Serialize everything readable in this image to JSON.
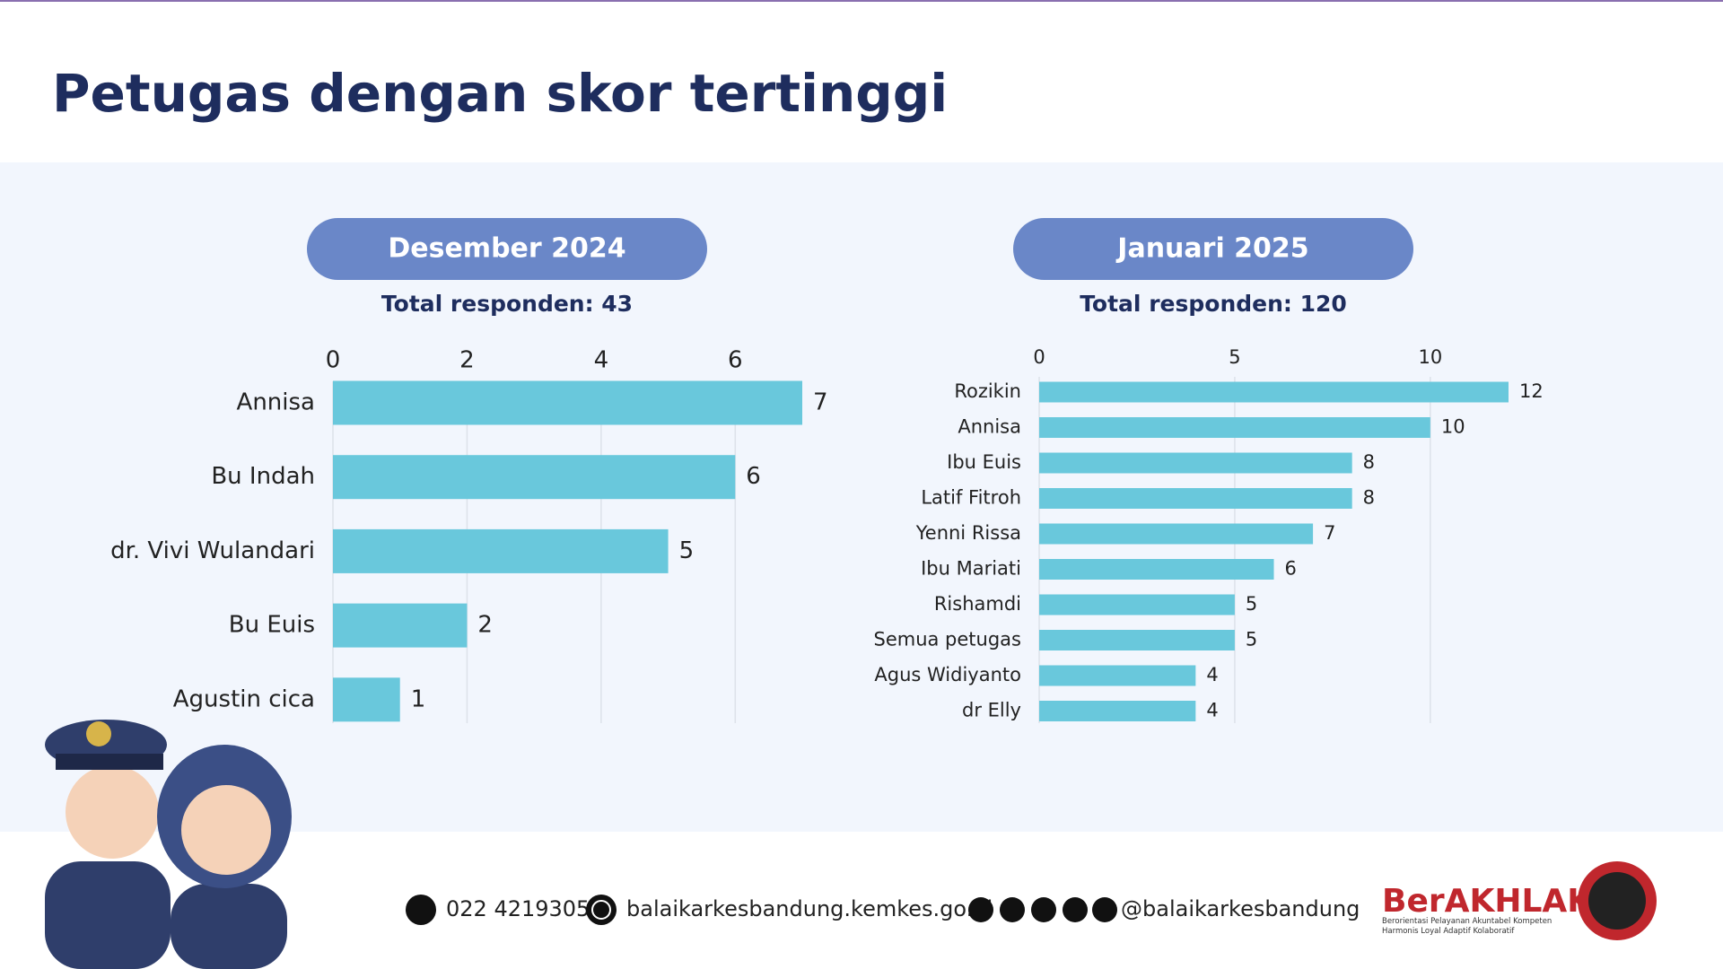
{
  "title": "Petugas dengan skor tertinggi",
  "footer": {
    "phone": "022 4219305",
    "website": "balaikarkesbandung.kemkes.go.id",
    "social": "@balaikarkesbandung",
    "logo": "BerAKHLAK",
    "logo_tagline": "Berorientasi Pelayanan Akuntabel Kompeten Harmonis Loyal Adaptif Kolaboratif"
  },
  "chart_data": [
    {
      "type": "bar",
      "orientation": "horizontal",
      "title": "Desember 2024",
      "subtitle": "Total responden: 43",
      "categories": [
        "Annisa",
        "Bu Indah",
        "dr. Vivi Wulandari",
        "Bu Euis",
        "Agustin cica"
      ],
      "values": [
        7,
        6,
        5,
        2,
        1
      ],
      "color": "#69c8dc",
      "xlim": [
        0,
        7
      ],
      "xticks": [
        0,
        2,
        4,
        6
      ],
      "grid": true
    },
    {
      "type": "bar",
      "orientation": "horizontal",
      "title": "Januari 2025",
      "subtitle": "Total responden: 120",
      "categories": [
        "Rozikin",
        "Annisa",
        "Ibu Euis",
        "Latif Fitroh",
        "Yenni Rissa",
        "Ibu Mariati",
        "Rishamdi",
        "Semua petugas",
        "Agus Widiyanto",
        "dr Elly"
      ],
      "values": [
        12,
        10,
        8,
        8,
        7,
        6,
        5,
        5,
        4,
        4
      ],
      "color": "#69c8dc",
      "xlim": [
        0,
        12
      ],
      "xticks": [
        0,
        5,
        10
      ],
      "grid": true
    }
  ]
}
